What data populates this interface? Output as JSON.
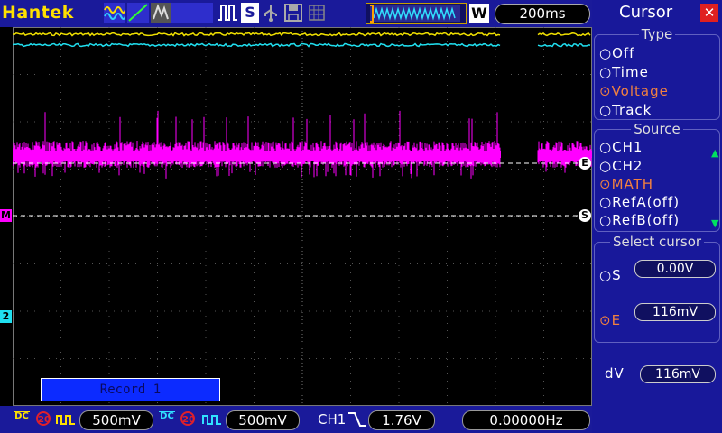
{
  "header": {
    "brand": "Hantek",
    "timebase": "200ms",
    "trigger_mode_icon": "W",
    "save_label": "S"
  },
  "screen": {
    "record_label": "Record 1",
    "markers": {
      "math": "M",
      "ch2": "2",
      "cursor_e": "E",
      "cursor_s": "S"
    }
  },
  "status": {
    "ch1_scale": "500mV",
    "ch2_scale": "500mV",
    "ch1_bw": "20",
    "ch2_bw": "20",
    "dc_label": "DC",
    "trigger_source": "CH1",
    "trigger_level": "1.76V",
    "frequency": "0.00000Hz"
  },
  "panel": {
    "title": "Cursor",
    "type_title": "Type",
    "type_options": [
      {
        "label": "Off",
        "selected": false
      },
      {
        "label": "Time",
        "selected": false
      },
      {
        "label": "Voltage",
        "selected": true
      },
      {
        "label": "Track",
        "selected": false
      }
    ],
    "source_title": "Source",
    "source_options": [
      {
        "label": "CH1",
        "selected": false
      },
      {
        "label": "CH2",
        "selected": false
      },
      {
        "label": "MATH",
        "selected": true
      },
      {
        "label": "RefA(off)",
        "selected": false
      },
      {
        "label": "RefB(off)",
        "selected": false
      }
    ],
    "select_title": "Select cursor",
    "cursor_s_label": "S",
    "cursor_s_value": "0.00V",
    "cursor_e_label": "E",
    "cursor_e_value": "116mV",
    "dv_label": "dV",
    "dv_value": "116mV"
  },
  "colors": {
    "ch1": "#f0e000",
    "ch2": "#20e0f0",
    "math": "#ff00ff",
    "bar": "#1a1a9a",
    "selected": "#f08040"
  }
}
